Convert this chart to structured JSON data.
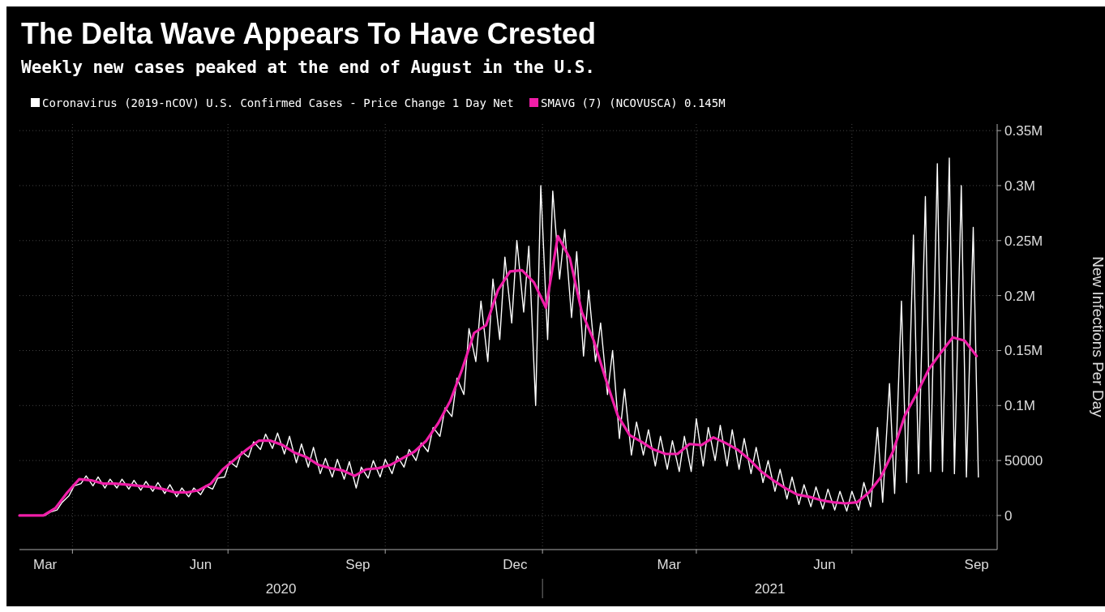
{
  "chart_data": {
    "type": "line",
    "title": "The Delta Wave Appears To Have Crested",
    "subtitle": "Weekly new cases peaked at the end of August in the U.S.",
    "ylabel": "New Infections Per Day",
    "xlim": [
      "2020-03-01",
      "2021-09-24"
    ],
    "xticks": [
      {
        "value": "2020-03-16",
        "label": "Mar"
      },
      {
        "value": "2020-04-01",
        "label": null
      },
      {
        "value": "2020-06-15",
        "label": "Jun"
      },
      {
        "value": "2020-07-01",
        "label": null
      },
      {
        "value": "2020-09-15",
        "label": "Sep"
      },
      {
        "value": "2020-10-01",
        "label": null
      },
      {
        "value": "2020-12-16",
        "label": "Dec"
      },
      {
        "value": "2021-01-01",
        "label": null
      },
      {
        "value": "2021-03-16",
        "label": "Mar"
      },
      {
        "value": "2021-04-01",
        "label": null
      },
      {
        "value": "2021-06-15",
        "label": "Jun"
      },
      {
        "value": "2021-07-01",
        "label": null
      },
      {
        "value": "2021-09-12",
        "label": "Sep"
      }
    ],
    "ylim": [
      -31000,
      356000
    ],
    "yticks": [
      0,
      50000,
      {
        "value": 100000,
        "label": "0.1M"
      },
      {
        "value": 150000,
        "label": "0.15M"
      },
      {
        "value": 200000,
        "label": "0.2M"
      },
      {
        "value": 250000,
        "label": "0.25M"
      },
      {
        "value": 300000,
        "label": "0.3M"
      },
      {
        "value": 350000,
        "label": "0.35M"
      }
    ],
    "grid": true,
    "legend": "top left",
    "annotations": [
      "2020",
      "2021"
    ],
    "series": [
      {
        "name": "Coronavirus (2019-nCOV) U.S. Confirmed Cases - Price Change 1 Day Net",
        "color": "#ffffff",
        "x": [
          "2020-03-16",
          "2020-03-19",
          "2020-03-23",
          "2020-03-26",
          "2020-03-30",
          "2020-04-02",
          "2020-04-06",
          "2020-04-09",
          "2020-04-13",
          "2020-04-16",
          "2020-04-20",
          "2020-04-23",
          "2020-04-27",
          "2020-04-30",
          "2020-05-04",
          "2020-05-07",
          "2020-05-11",
          "2020-05-14",
          "2020-05-18",
          "2020-05-21",
          "2020-05-25",
          "2020-05-28",
          "2020-06-01",
          "2020-06-04",
          "2020-06-08",
          "2020-06-11",
          "2020-06-15",
          "2020-06-18",
          "2020-06-22",
          "2020-06-25",
          "2020-06-29",
          "2020-07-02",
          "2020-07-06",
          "2020-07-09",
          "2020-07-13",
          "2020-07-16",
          "2020-07-20",
          "2020-07-23",
          "2020-07-27",
          "2020-07-30",
          "2020-08-03",
          "2020-08-06",
          "2020-08-10",
          "2020-08-13",
          "2020-08-17",
          "2020-08-20",
          "2020-08-24",
          "2020-08-27",
          "2020-08-31",
          "2020-09-03",
          "2020-09-07",
          "2020-09-10",
          "2020-09-14",
          "2020-09-17",
          "2020-09-21",
          "2020-09-24",
          "2020-09-28",
          "2020-10-01",
          "2020-10-05",
          "2020-10-08",
          "2020-10-12",
          "2020-10-15",
          "2020-10-19",
          "2020-10-22",
          "2020-10-26",
          "2020-10-29",
          "2020-11-02",
          "2020-11-05",
          "2020-11-09",
          "2020-11-12",
          "2020-11-16",
          "2020-11-19",
          "2020-11-23",
          "2020-11-26",
          "2020-11-30",
          "2020-12-03",
          "2020-12-07",
          "2020-12-10",
          "2020-12-14",
          "2020-12-17",
          "2020-12-21",
          "2020-12-24",
          "2020-12-28",
          "2020-12-31",
          "2021-01-04",
          "2021-01-07",
          "2021-01-11",
          "2021-01-14",
          "2021-01-18",
          "2021-01-21",
          "2021-01-25",
          "2021-01-28",
          "2021-02-01",
          "2021-02-04",
          "2021-02-08",
          "2021-02-11",
          "2021-02-15",
          "2021-02-18",
          "2021-02-22",
          "2021-02-25",
          "2021-03-01",
          "2021-03-04",
          "2021-03-08",
          "2021-03-11",
          "2021-03-15",
          "2021-03-18",
          "2021-03-22",
          "2021-03-25",
          "2021-03-29",
          "2021-04-01",
          "2021-04-05",
          "2021-04-08",
          "2021-04-12",
          "2021-04-15",
          "2021-04-19",
          "2021-04-22",
          "2021-04-26",
          "2021-04-29",
          "2021-05-03",
          "2021-05-06",
          "2021-05-10",
          "2021-05-13",
          "2021-05-17",
          "2021-05-20",
          "2021-05-24",
          "2021-05-27",
          "2021-05-31",
          "2021-06-03",
          "2021-06-07",
          "2021-06-10",
          "2021-06-14",
          "2021-06-17",
          "2021-06-21",
          "2021-06-24",
          "2021-06-28",
          "2021-07-01",
          "2021-07-05",
          "2021-07-08",
          "2021-07-12",
          "2021-07-16",
          "2021-07-19",
          "2021-07-23",
          "2021-07-26",
          "2021-07-30",
          "2021-08-02",
          "2021-08-06",
          "2021-08-09",
          "2021-08-13",
          "2021-08-16",
          "2021-08-20",
          "2021-08-23",
          "2021-08-27",
          "2021-08-30",
          "2021-09-03",
          "2021-09-06",
          "2021-09-10",
          "2021-09-13"
        ],
        "values": [
          0,
          3000,
          5000,
          12000,
          18000,
          27000,
          29000,
          36000,
          27000,
          35000,
          25000,
          33000,
          25000,
          33000,
          24000,
          32000,
          23000,
          31000,
          22000,
          30000,
          20000,
          28000,
          17000,
          25000,
          17000,
          25000,
          19000,
          27000,
          24000,
          34000,
          35000,
          49000,
          44000,
          58000,
          53000,
          67000,
          60000,
          74000,
          61000,
          75000,
          56000,
          72000,
          48000,
          65000,
          44000,
          62000,
          38000,
          52000,
          35000,
          51000,
          33000,
          49000,
          25000,
          44000,
          34000,
          50000,
          35000,
          51000,
          38000,
          54000,
          44000,
          60000,
          50000,
          66000,
          58000,
          80000,
          72000,
          98000,
          90000,
          125000,
          110000,
          170000,
          140000,
          195000,
          140000,
          215000,
          160000,
          235000,
          175000,
          250000,
          185000,
          245000,
          100000,
          300000,
          160000,
          295000,
          215000,
          260000,
          180000,
          240000,
          145000,
          205000,
          140000,
          175000,
          110000,
          150000,
          70000,
          115000,
          55000,
          85000,
          55000,
          78000,
          45000,
          72000,
          42000,
          68000,
          40000,
          72000,
          40000,
          88000,
          45000,
          80000,
          50000,
          82000,
          45000,
          78000,
          42000,
          70000,
          38000,
          62000,
          30000,
          50000,
          22000,
          42000,
          15000,
          35000,
          10000,
          28000,
          8000,
          26000,
          6000,
          24000,
          5000,
          22000,
          4000,
          22000,
          5000,
          30000,
          8000,
          80000,
          12000,
          120000,
          20000,
          195000,
          30000,
          255000,
          38000,
          290000,
          40000,
          320000,
          40000,
          325000,
          38000,
          300000,
          35000,
          262000,
          35000
        ]
      },
      {
        "name": "SMAVG (7) (NCOVUSCA) 0.145M",
        "color": "#f01ea8",
        "x": [
          "2020-03-01",
          "2020-03-08",
          "2020-03-15",
          "2020-03-22",
          "2020-03-29",
          "2020-04-05",
          "2020-04-12",
          "2020-04-19",
          "2020-04-26",
          "2020-05-03",
          "2020-05-10",
          "2020-05-17",
          "2020-05-24",
          "2020-05-31",
          "2020-06-07",
          "2020-06-14",
          "2020-06-21",
          "2020-06-28",
          "2020-07-05",
          "2020-07-12",
          "2020-07-19",
          "2020-07-26",
          "2020-08-02",
          "2020-08-09",
          "2020-08-16",
          "2020-08-23",
          "2020-08-30",
          "2020-09-06",
          "2020-09-13",
          "2020-09-20",
          "2020-09-27",
          "2020-10-04",
          "2020-10-11",
          "2020-10-18",
          "2020-10-25",
          "2020-11-01",
          "2020-11-08",
          "2020-11-15",
          "2020-11-22",
          "2020-11-29",
          "2020-12-06",
          "2020-12-13",
          "2020-12-20",
          "2020-12-27",
          "2021-01-03",
          "2021-01-10",
          "2021-01-17",
          "2021-01-24",
          "2021-01-31",
          "2021-02-07",
          "2021-02-14",
          "2021-02-21",
          "2021-02-28",
          "2021-03-07",
          "2021-03-14",
          "2021-03-21",
          "2021-03-28",
          "2021-04-04",
          "2021-04-11",
          "2021-04-18",
          "2021-04-25",
          "2021-05-02",
          "2021-05-09",
          "2021-05-16",
          "2021-05-23",
          "2021-05-30",
          "2021-06-06",
          "2021-06-13",
          "2021-06-20",
          "2021-06-27",
          "2021-07-04",
          "2021-07-11",
          "2021-07-18",
          "2021-07-25",
          "2021-08-01",
          "2021-08-08",
          "2021-08-15",
          "2021-08-22",
          "2021-08-29",
          "2021-09-05",
          "2021-09-12"
        ],
        "values": [
          0,
          0,
          0,
          6600,
          21000,
          33000,
          32000,
          29000,
          29000,
          28000,
          27000,
          26000,
          24000,
          21000,
          21000,
          23000,
          29000,
          42000,
          51000,
          60000,
          68000,
          68000,
          64000,
          57000,
          53000,
          46000,
          43000,
          41000,
          36000,
          42000,
          43000,
          46000,
          52000,
          58000,
          68000,
          84000,
          104000,
          133000,
          166000,
          173000,
          205000,
          222000,
          223000,
          212000,
          189000,
          254000,
          234000,
          185000,
          159000,
          124000,
          91000,
          73000,
          67000,
          60000,
          56000,
          56000,
          65000,
          64000,
          71000,
          66000,
          60000,
          51000,
          40000,
          32000,
          25000,
          19000,
          17000,
          14000,
          12000,
          11000,
          12000,
          21000,
          35000,
          58000,
          91000,
          111000,
          133000,
          148000,
          162000,
          159000,
          145000
        ]
      }
    ]
  }
}
